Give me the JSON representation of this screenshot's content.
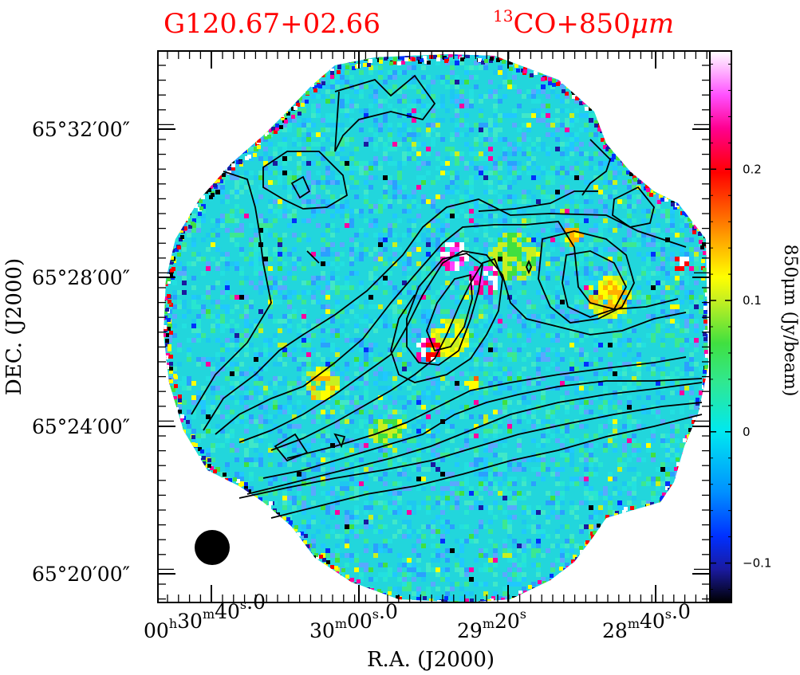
{
  "chart_data": {
    "type": "heatmap",
    "title_left": "G120.67+02.66",
    "title_right": "13CO+850μm",
    "title_right_parts": {
      "sup": "13",
      "main": "CO+850",
      "unit": "μm"
    },
    "xlabel": "R.A.  (J2000)",
    "ylabel": "DEC.  (J2000)",
    "x_ticks": [
      {
        "h": "00",
        "m": "30",
        "s": "40",
        "frac": "0"
      },
      {
        "h": "",
        "m": "30",
        "s": "00",
        "frac": "0"
      },
      {
        "h": "",
        "m": "29",
        "s": "20",
        "frac": ""
      },
      {
        "h": "",
        "m": "28",
        "s": "40",
        "frac": "0"
      }
    ],
    "y_ticks": [
      "65°32′00″",
      "65°28′00″",
      "65°24′00″",
      "65°20′00″"
    ],
    "colorbar": {
      "label": "850μm  (Jy/beam)",
      "range": [
        -0.13,
        0.29
      ],
      "ticks": [
        {
          "value": 0.2,
          "label": "0.2"
        },
        {
          "value": 0.1,
          "label": "0.1"
        },
        {
          "value": 0,
          "label": "0"
        },
        {
          "value": -0.1,
          "label": "−0.1"
        }
      ],
      "colors": [
        "#000000",
        "#1a1aa0",
        "#0040ff",
        "#00a0ff",
        "#00e0e8",
        "#30e890",
        "#40e040",
        "#c0f020",
        "#ffff00",
        "#ffb000",
        "#ff6000",
        "#ff0000",
        "#ff0090",
        "#ff40ff",
        "#ffb0ff",
        "#ffffff"
      ]
    },
    "beam": "filled-circle",
    "grid": false,
    "legend": "none"
  }
}
